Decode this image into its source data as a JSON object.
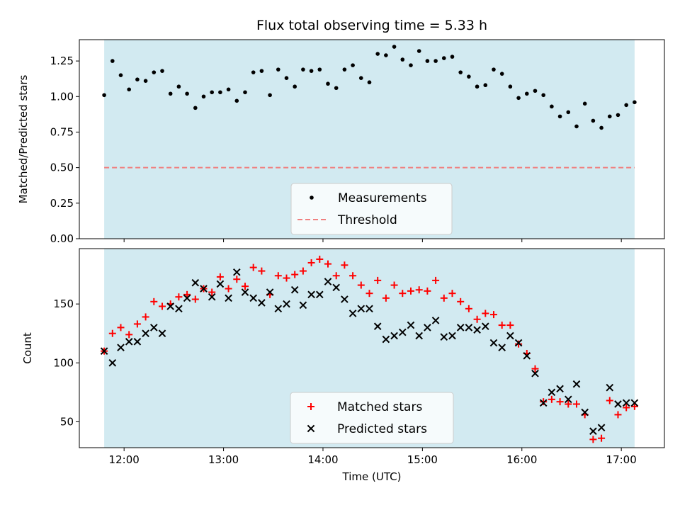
{
  "colors": {
    "observing_span": "#add8e6",
    "matched": "#ff0000",
    "predicted": "#000000",
    "measurement": "#000000",
    "threshold": "#f08080",
    "axes": "#000000"
  },
  "chart_data": [
    {
      "type": "scatter",
      "title": "Flux total observing time = 5.33 h",
      "xlabel": "",
      "ylabel": "Matched/Predicted stars",
      "xlim": [
        "11:33",
        "17:26"
      ],
      "ylim": [
        0,
        1.4
      ],
      "yticks": [
        "0.00",
        "0.25",
        "0.50",
        "0.75",
        "1.00",
        "1.25"
      ],
      "xticks": [],
      "x_tick_marks": [
        "12:00",
        "13:00",
        "14:00",
        "15:00",
        "16:00",
        "17:00"
      ],
      "grid": false,
      "legend": "lower center",
      "observing_span": [
        "11:48",
        "17:08"
      ],
      "threshold": 0.5,
      "series": [
        {
          "name": "Measurements",
          "marker": "dot",
          "x": [
            "11:48",
            "11:53",
            "11:58",
            "12:03",
            "12:08",
            "12:13",
            "12:18",
            "12:23",
            "12:28",
            "12:33",
            "12:38",
            "12:43",
            "12:48",
            "12:53",
            "12:58",
            "13:03",
            "13:08",
            "13:13",
            "13:18",
            "13:23",
            "13:28",
            "13:33",
            "13:38",
            "13:43",
            "13:48",
            "13:53",
            "13:58",
            "14:03",
            "14:08",
            "14:13",
            "14:18",
            "14:23",
            "14:28",
            "14:33",
            "14:38",
            "14:43",
            "14:48",
            "14:53",
            "14:58",
            "15:03",
            "15:08",
            "15:13",
            "15:18",
            "15:23",
            "15:28",
            "15:33",
            "15:38",
            "15:43",
            "15:48",
            "15:53",
            "15:58",
            "16:03",
            "16:08",
            "16:13",
            "16:18",
            "16:23",
            "16:28",
            "16:33",
            "16:38",
            "16:43",
            "16:48",
            "16:53",
            "16:58",
            "17:03",
            "17:08"
          ],
          "y": [
            1.01,
            1.25,
            1.15,
            1.05,
            1.12,
            1.11,
            1.17,
            1.18,
            1.02,
            1.07,
            1.02,
            0.92,
            1.0,
            1.03,
            1.03,
            1.05,
            0.97,
            1.03,
            1.17,
            1.18,
            1.01,
            1.19,
            1.13,
            1.07,
            1.19,
            1.18,
            1.19,
            1.09,
            1.06,
            1.19,
            1.22,
            1.13,
            1.1,
            1.3,
            1.29,
            1.35,
            1.26,
            1.22,
            1.32,
            1.25,
            1.25,
            1.27,
            1.28,
            1.17,
            1.14,
            1.07,
            1.08,
            1.19,
            1.16,
            1.07,
            0.99,
            1.02,
            1.04,
            1.01,
            0.93,
            0.86,
            0.89,
            0.79,
            0.95,
            0.83,
            0.78,
            0.86,
            0.87,
            0.94,
            0.96
          ]
        },
        {
          "name": "Threshold",
          "marker": "dashed-line",
          "x": [
            "11:48",
            "17:08"
          ],
          "y": [
            0.5,
            0.5
          ]
        }
      ]
    },
    {
      "type": "scatter",
      "title": "",
      "xlabel": "Time (UTC)",
      "ylabel": "Count",
      "xlim": [
        "11:33",
        "17:26"
      ],
      "ylim": [
        28,
        197
      ],
      "yticks": [
        "50",
        "100",
        "150"
      ],
      "xticks": [
        "12:00",
        "13:00",
        "14:00",
        "15:00",
        "16:00",
        "17:00"
      ],
      "grid": false,
      "legend": "lower center",
      "observing_span": [
        "11:48",
        "17:08"
      ],
      "series": [
        {
          "name": "Matched stars",
          "marker": "plus",
          "x": [
            "11:48",
            "11:53",
            "11:58",
            "12:03",
            "12:08",
            "12:13",
            "12:18",
            "12:23",
            "12:28",
            "12:33",
            "12:38",
            "12:43",
            "12:48",
            "12:53",
            "12:58",
            "13:03",
            "13:08",
            "13:13",
            "13:18",
            "13:23",
            "13:28",
            "13:33",
            "13:38",
            "13:43",
            "13:48",
            "13:53",
            "13:58",
            "14:03",
            "14:08",
            "14:13",
            "14:18",
            "14:23",
            "14:28",
            "14:33",
            "14:38",
            "14:43",
            "14:48",
            "14:53",
            "14:58",
            "15:03",
            "15:08",
            "15:13",
            "15:18",
            "15:23",
            "15:28",
            "15:33",
            "15:38",
            "15:43",
            "15:48",
            "15:53",
            "15:58",
            "16:03",
            "16:08",
            "16:13",
            "16:18",
            "16:23",
            "16:28",
            "16:33",
            "16:38",
            "16:43",
            "16:48",
            "16:53",
            "16:58",
            "17:03",
            "17:08"
          ],
          "y": [
            110,
            125,
            130,
            124,
            133,
            139,
            152,
            148,
            150,
            156,
            158,
            154,
            163,
            160,
            173,
            163,
            171,
            165,
            181,
            178,
            158,
            174,
            172,
            175,
            178,
            185,
            188,
            184,
            174,
            183,
            174,
            166,
            159,
            170,
            155,
            166,
            159,
            161,
            162,
            161,
            170,
            155,
            159,
            152,
            146,
            137,
            142,
            141,
            132,
            132,
            116,
            108,
            95,
            67,
            69,
            67,
            65,
            65,
            56,
            35,
            36,
            68,
            56,
            62,
            63
          ]
        },
        {
          "name": "Predicted stars",
          "marker": "cross",
          "x": [
            "11:48",
            "11:53",
            "11:58",
            "12:03",
            "12:08",
            "12:13",
            "12:18",
            "12:23",
            "12:28",
            "12:33",
            "12:38",
            "12:43",
            "12:48",
            "12:53",
            "12:58",
            "13:03",
            "13:08",
            "13:13",
            "13:18",
            "13:23",
            "13:28",
            "13:33",
            "13:38",
            "13:43",
            "13:48",
            "13:53",
            "13:58",
            "14:03",
            "14:08",
            "14:13",
            "14:18",
            "14:23",
            "14:28",
            "14:33",
            "14:38",
            "14:43",
            "14:48",
            "14:53",
            "14:58",
            "15:03",
            "15:08",
            "15:13",
            "15:18",
            "15:23",
            "15:28",
            "15:33",
            "15:38",
            "15:43",
            "15:48",
            "15:53",
            "15:58",
            "16:03",
            "16:08",
            "16:13",
            "16:18",
            "16:23",
            "16:28",
            "16:33",
            "16:38",
            "16:43",
            "16:48",
            "16:53",
            "16:58",
            "17:03",
            "17:08"
          ],
          "y": [
            110,
            100,
            113,
            118,
            118,
            125,
            130,
            125,
            148,
            146,
            155,
            168,
            163,
            156,
            167,
            155,
            177,
            160,
            155,
            151,
            160,
            146,
            150,
            162,
            149,
            158,
            158,
            169,
            164,
            154,
            142,
            146,
            146,
            131,
            120,
            123,
            126,
            132,
            123,
            130,
            136,
            122,
            123,
            130,
            130,
            128,
            131,
            117,
            113,
            123,
            117,
            106,
            91,
            66,
            75,
            78,
            69,
            82,
            58,
            42,
            45,
            79,
            65,
            66,
            66
          ]
        }
      ]
    }
  ]
}
